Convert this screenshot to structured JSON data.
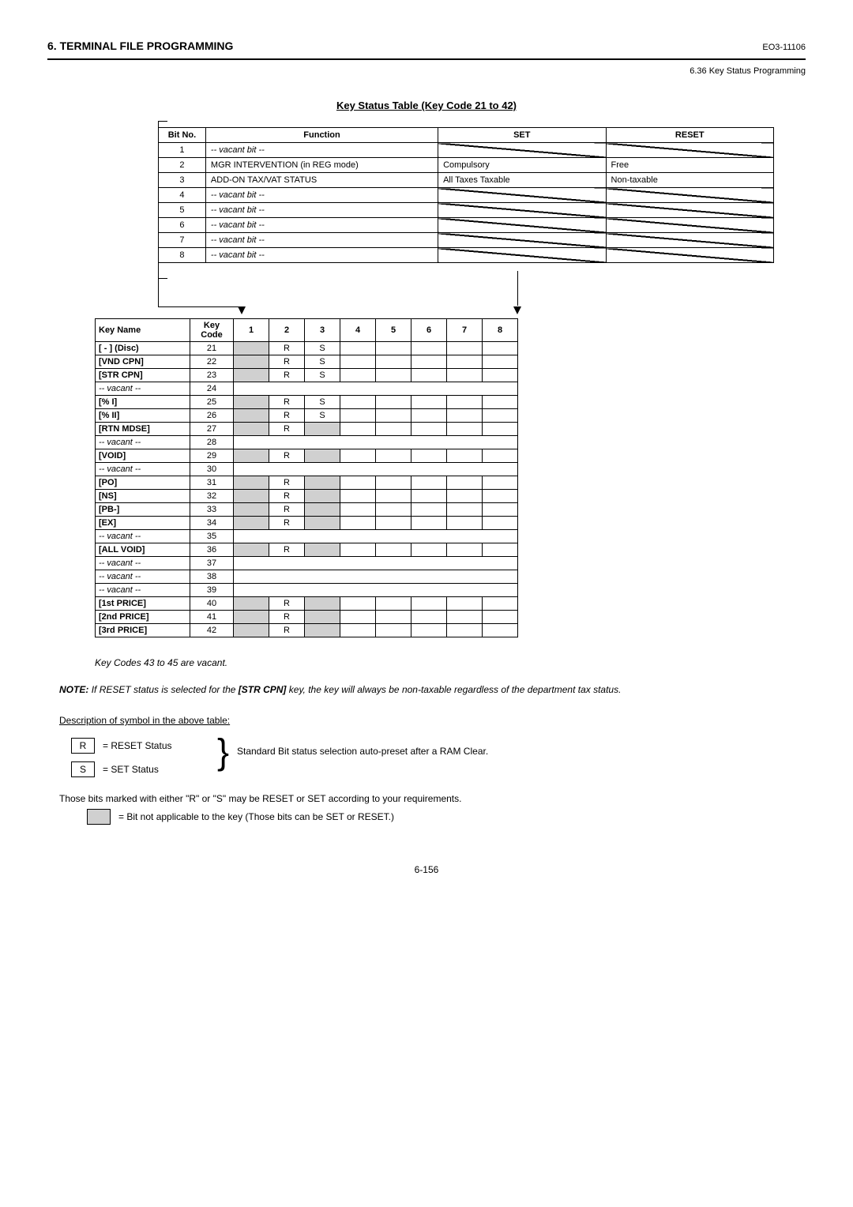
{
  "header": {
    "section": "6. TERMINAL FILE PROGRAMMING",
    "doc_code": "EO3-11106",
    "subsection": "6.36 Key Status Programming"
  },
  "table_title": "Key Status Table (Key Code 21 to 42)",
  "bit_table": {
    "headers": {
      "bitno": "Bit No.",
      "func": "Function",
      "set": "SET",
      "reset": "RESET"
    },
    "rows": [
      {
        "bitno": "1",
        "func": "-- vacant bit --",
        "func_italic": true,
        "set": "",
        "reset": "",
        "diag": true
      },
      {
        "bitno": "2",
        "func": "MGR INTERVENTION (in REG mode)",
        "set": "Compulsory",
        "reset": "Free"
      },
      {
        "bitno": "3",
        "func": "ADD-ON TAX/VAT STATUS",
        "set": "All Taxes Taxable",
        "reset": "Non-taxable"
      },
      {
        "bitno": "4",
        "func": "-- vacant bit --",
        "func_italic": true,
        "set": "",
        "reset": "",
        "diag": true
      },
      {
        "bitno": "5",
        "func": "-- vacant bit --",
        "func_italic": true,
        "set": "",
        "reset": "",
        "diag": true
      },
      {
        "bitno": "6",
        "func": "-- vacant bit --",
        "func_italic": true,
        "set": "",
        "reset": "",
        "diag": true
      },
      {
        "bitno": "7",
        "func": "-- vacant bit --",
        "func_italic": true,
        "set": "",
        "reset": "",
        "diag": true
      },
      {
        "bitno": "8",
        "func": "-- vacant bit --",
        "func_italic": true,
        "set": "",
        "reset": "",
        "diag": true
      }
    ]
  },
  "key_table": {
    "headers": {
      "keyname": "Key Name",
      "keycode": "Key Code",
      "bits": [
        "1",
        "2",
        "3",
        "4",
        "5",
        "6",
        "7",
        "8"
      ]
    },
    "rows": [
      {
        "name": "[ - ] (Disc)",
        "code": "21",
        "cells": [
          "grey",
          "R",
          "S",
          "",
          "",
          "",
          "",
          ""
        ]
      },
      {
        "name": "[VND CPN]",
        "code": "22",
        "cells": [
          "grey",
          "R",
          "S",
          "",
          "",
          "",
          "",
          ""
        ]
      },
      {
        "name": "[STR CPN]",
        "code": "23",
        "cells": [
          "grey",
          "R",
          "S",
          "",
          "",
          "",
          "",
          ""
        ]
      },
      {
        "name": "-- vacant --",
        "code": "24",
        "vacant": true
      },
      {
        "name": "[% I]",
        "code": "25",
        "cells": [
          "grey",
          "R",
          "S",
          "",
          "",
          "",
          "",
          ""
        ]
      },
      {
        "name": "[% II]",
        "code": "26",
        "cells": [
          "grey",
          "R",
          "S",
          "",
          "",
          "",
          "",
          ""
        ]
      },
      {
        "name": "[RTN MDSE]",
        "code": "27",
        "cells": [
          "grey",
          "R",
          "grey",
          "",
          "",
          "",
          "",
          ""
        ]
      },
      {
        "name": "-- vacant --",
        "code": "28",
        "vacant": true
      },
      {
        "name": "[VOID]",
        "code": "29",
        "cells": [
          "grey",
          "R",
          "grey",
          "",
          "",
          "",
          "",
          ""
        ]
      },
      {
        "name": "-- vacant --",
        "code": "30",
        "vacant": true
      },
      {
        "name": "[PO]",
        "code": "31",
        "cells": [
          "grey",
          "R",
          "grey",
          "",
          "",
          "",
          "",
          ""
        ]
      },
      {
        "name": "[NS]",
        "code": "32",
        "cells": [
          "grey",
          "R",
          "grey",
          "",
          "",
          "",
          "",
          ""
        ]
      },
      {
        "name": "[PB-]",
        "code": "33",
        "cells": [
          "grey",
          "R",
          "grey",
          "",
          "",
          "",
          "",
          ""
        ]
      },
      {
        "name": "[EX]",
        "code": "34",
        "cells": [
          "grey",
          "R",
          "grey",
          "",
          "",
          "",
          "",
          ""
        ]
      },
      {
        "name": "-- vacant --",
        "code": "35",
        "vacant": true
      },
      {
        "name": "[ALL VOID]",
        "code": "36",
        "cells": [
          "grey",
          "R",
          "grey",
          "",
          "",
          "",
          "",
          ""
        ]
      },
      {
        "name": "-- vacant --",
        "code": "37",
        "vacant": true
      },
      {
        "name": "-- vacant --",
        "code": "38",
        "vacant": true
      },
      {
        "name": "-- vacant --",
        "code": "39",
        "vacant": true
      },
      {
        "name": "[1st PRICE]",
        "code": "40",
        "cells": [
          "grey",
          "R",
          "grey",
          "",
          "",
          "",
          "",
          ""
        ]
      },
      {
        "name": "[2nd PRICE]",
        "code": "41",
        "cells": [
          "grey",
          "R",
          "grey",
          "",
          "",
          "",
          "",
          ""
        ]
      },
      {
        "name": "[3rd PRICE]",
        "code": "42",
        "cells": [
          "grey",
          "R",
          "grey",
          "",
          "",
          "",
          "",
          ""
        ]
      }
    ]
  },
  "vacant_note": "Key Codes 43 to 45 are vacant.",
  "note": {
    "label": "NOTE:",
    "text_pre": "If RESET status is selected for the ",
    "bold": "[STR CPN]",
    "text_post": " key, the key will always be non-taxable regardless of the department tax status."
  },
  "legend": {
    "title": "Description of symbol in the above table:",
    "r_label": "R",
    "r_text": "= RESET Status",
    "s_label": "S",
    "s_text": "= SET Status",
    "bracket_text": "Standard Bit status selection auto-preset after a RAM Clear.",
    "final1": "Those bits marked with either \"R\" or \"S\" may be RESET or SET according to your requirements.",
    "final2": "= Bit not applicable to the key (Those bits can be SET or RESET.)"
  },
  "page_num": "6-156",
  "colors": {
    "grey": "#d0d0d0",
    "text": "#000000",
    "bg": "#ffffff"
  }
}
